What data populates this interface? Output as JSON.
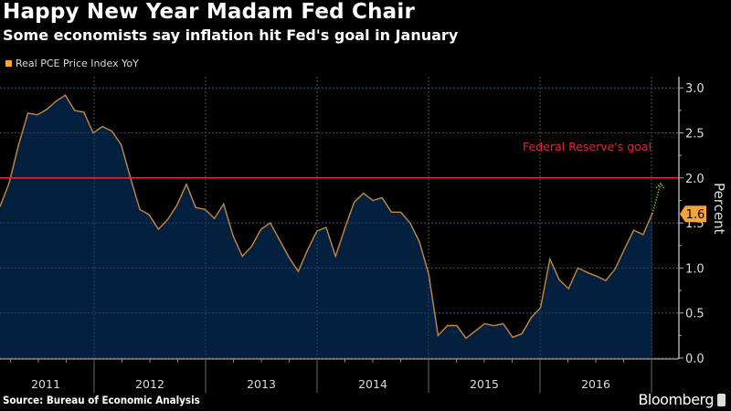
{
  "header": {
    "title": "Happy New Year Madam Fed Chair",
    "subtitle": "Some economists say inflation hit Fed's goal in January"
  },
  "footer": {
    "source": "Source: Bureau of Economic Analysis",
    "brand": "Bloomberg"
  },
  "colors": {
    "background": "#000000",
    "line": "#c8893e",
    "area": "#03203e",
    "goal": "#e0263a",
    "legend_swatch": "#f5a33b",
    "projection": "#6fbf1a",
    "badge": "#f5a33b"
  },
  "chart_data": {
    "type": "area",
    "title": "Happy New Year Madam Fed Chair",
    "subtitle": "Some economists say inflation hit Fed's goal in January",
    "xlabel": "",
    "ylabel": "Percent",
    "ylim": [
      0,
      3.2
    ],
    "yticks": [
      0.0,
      0.5,
      1.0,
      1.5,
      2.0,
      2.5,
      3.0
    ],
    "ytick_labels": [
      "0.0",
      "0.5",
      "1.0",
      "1.5",
      "2.0",
      "2.5",
      "3.0"
    ],
    "xtick_labels": [
      "2011",
      "2012",
      "2013",
      "2014",
      "2015",
      "2016"
    ],
    "grid": true,
    "legend": {
      "position": "top-left",
      "entries": [
        "Real PCE Price Index YoY"
      ]
    },
    "series": [
      {
        "name": "Real PCE Price Index YoY",
        "start": "2011-03",
        "frequency": "monthly",
        "values": [
          1.68,
          1.95,
          2.37,
          2.72,
          2.7,
          2.76,
          2.85,
          2.92,
          2.75,
          2.73,
          2.5,
          2.57,
          2.52,
          2.37,
          2.0,
          1.65,
          1.59,
          1.43,
          1.54,
          1.7,
          1.93,
          1.67,
          1.65,
          1.55,
          1.71,
          1.36,
          1.13,
          1.24,
          1.43,
          1.5,
          1.31,
          1.12,
          0.96,
          1.2,
          1.41,
          1.45,
          1.13,
          1.44,
          1.73,
          1.83,
          1.75,
          1.78,
          1.62,
          1.62,
          1.5,
          1.29,
          0.93,
          0.25,
          0.36,
          0.36,
          0.22,
          0.3,
          0.38,
          0.36,
          0.38,
          0.23,
          0.27,
          0.45,
          0.56,
          1.1,
          0.87,
          0.77,
          1.0,
          0.95,
          0.91,
          0.86,
          0.99,
          1.21,
          1.42,
          1.37,
          1.61
        ]
      }
    ],
    "reference_line": {
      "value": 2.0,
      "label": "Federal Reserve's goal"
    },
    "projection": {
      "from": 1.6,
      "to": 2.0,
      "style": "dotted-arrow"
    },
    "last_value_label": "1.6"
  }
}
